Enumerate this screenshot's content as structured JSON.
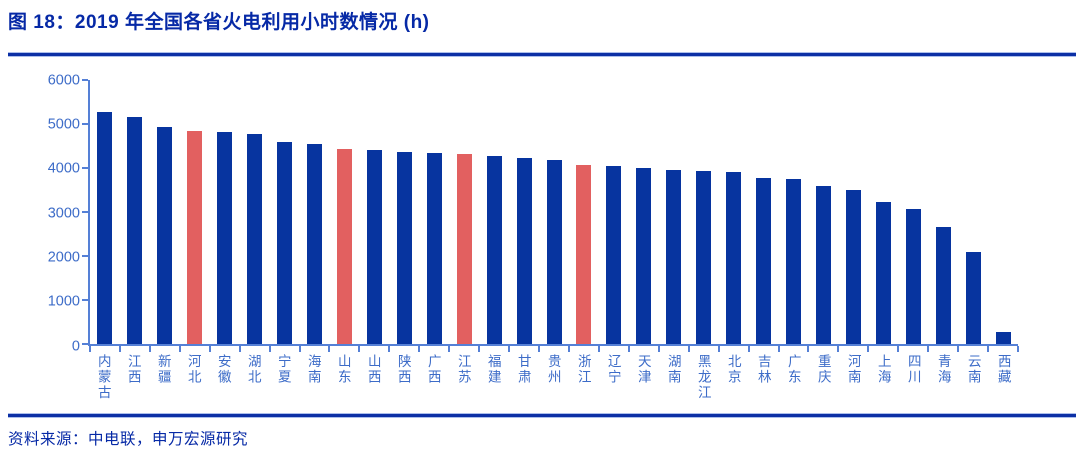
{
  "header": {
    "title": "图 18：2019 年全国各省火电利用小时数情况 (h)"
  },
  "footer": {
    "source": "资料来源：中电联，申万宏源研究"
  },
  "colors": {
    "title_blue": "#0629A6",
    "divider_blue": "#0C30A5",
    "bar_blue": "#07349F",
    "highlight_red": "#E26060",
    "axis_label_blue": "#3D6CC8",
    "axis_line_blue": "#5580D6"
  },
  "chart_data": {
    "type": "bar",
    "title": "2019 年全国各省火电利用小时数情况 (h)",
    "unit": "h",
    "categories": [
      "内蒙古",
      "江西",
      "新疆",
      "河北",
      "安徽",
      "湖北",
      "宁夏",
      "海南",
      "山东",
      "山西",
      "陕西",
      "广西",
      "江苏",
      "福建",
      "甘肃",
      "贵州",
      "浙江",
      "辽宁",
      "天津",
      "湖南",
      "黑龙江",
      "北京",
      "吉林",
      "广东",
      "重庆",
      "河南",
      "上海",
      "四川",
      "青海",
      "云南",
      "西藏"
    ],
    "values": [
      5270,
      5160,
      4930,
      4840,
      4810,
      4780,
      4590,
      4540,
      4440,
      4410,
      4360,
      4340,
      4310,
      4270,
      4230,
      4180,
      4060,
      4050,
      4010,
      3960,
      3940,
      3910,
      3770,
      3750,
      3590,
      3510,
      3230,
      3070,
      2660,
      2100,
      280
    ],
    "highlighted_categories": [
      "河北",
      "山东",
      "江苏",
      "浙江"
    ],
    "xlabel": "",
    "ylabel": "",
    "ylim": [
      0,
      6000
    ],
    "yticks": [
      0,
      1000,
      2000,
      3000,
      4000,
      5000,
      6000
    ],
    "grid": false,
    "legend": false
  }
}
